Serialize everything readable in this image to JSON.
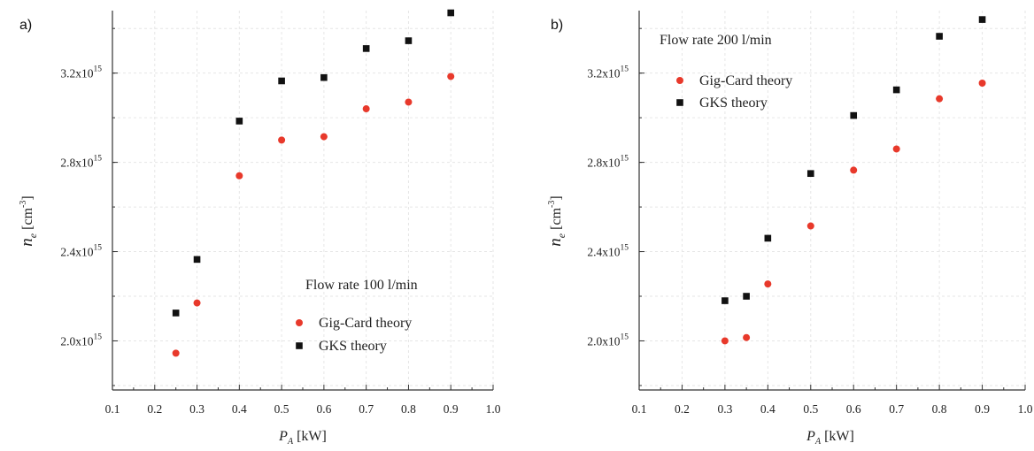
{
  "colors": {
    "gig_card": "#e8392b",
    "gks": "#111111",
    "axis": "#333333",
    "grid": "#e6e6e6"
  },
  "chart_data": [
    {
      "type": "scatter",
      "panel_label": "a)",
      "annotation": "Flow rate 100 l/min",
      "xlabel_main": "P",
      "xlabel_sub": "A",
      "xlabel_unit": "[kW]",
      "ylabel_main": "n",
      "ylabel_sub": "e",
      "ylabel_unit_pre": "[cm",
      "ylabel_unit_sup": "-3",
      "ylabel_unit_post": "]",
      "xlim": [
        0.1,
        1.0
      ],
      "ylim": [
        1780000000000000.0,
        3480000000000000.0
      ],
      "xticks": [
        0.1,
        0.2,
        0.3,
        0.4,
        0.5,
        0.6,
        0.7,
        0.8,
        0.9,
        1.0
      ],
      "xtick_labels": [
        "0.1",
        "0.2",
        "0.3",
        "0.4",
        "0.5",
        "0.6",
        "0.7",
        "0.8",
        "0.9",
        "1.0"
      ],
      "yticks": [
        2000000000000000.0,
        2400000000000000.0,
        2800000000000000.0,
        3200000000000000.0
      ],
      "ytick_labels": [
        {
          "mantissa": "2.0x10",
          "exp": "15"
        },
        {
          "mantissa": "2.4x10",
          "exp": "15"
        },
        {
          "mantissa": "2.8x10",
          "exp": "15"
        },
        {
          "mantissa": "3.2x10",
          "exp": "15"
        }
      ],
      "grid": true,
      "legend_placement": "bottom-right",
      "series": [
        {
          "name": "Gig-Card theory",
          "marker": "circle",
          "color": "#e8392b",
          "x": [
            0.25,
            0.3,
            0.4,
            0.5,
            0.6,
            0.7,
            0.8,
            0.9
          ],
          "y": [
            1945000000000000.0,
            2170000000000000.0,
            2740000000000000.0,
            2900000000000000.0,
            2915000000000000.0,
            3040000000000000.0,
            3070000000000000.0,
            3185000000000000.0
          ]
        },
        {
          "name": "GKS theory",
          "marker": "square",
          "color": "#111111",
          "x": [
            0.25,
            0.3,
            0.4,
            0.5,
            0.6,
            0.7,
            0.8,
            0.9
          ],
          "y": [
            2125000000000000.0,
            2365000000000000.0,
            2985000000000000.0,
            3165000000000000.0,
            3180000000000000.0,
            3310000000000000.0,
            3345000000000000.0,
            3470000000000000.0
          ]
        }
      ]
    },
    {
      "type": "scatter",
      "panel_label": "b)",
      "annotation": "Flow rate 200 l/min",
      "xlabel_main": "P",
      "xlabel_sub": "A",
      "xlabel_unit": "[kW]",
      "ylabel_main": "n",
      "ylabel_sub": "e",
      "ylabel_unit_pre": "[cm",
      "ylabel_unit_sup": "-3",
      "ylabel_unit_post": "]",
      "xlim": [
        0.1,
        1.0
      ],
      "ylim": [
        1780000000000000.0,
        3480000000000000.0
      ],
      "xticks": [
        0.1,
        0.2,
        0.3,
        0.4,
        0.5,
        0.6,
        0.7,
        0.8,
        0.9,
        1.0
      ],
      "xtick_labels": [
        "0.1",
        "0.2",
        "0.3",
        "0.4",
        "0.5",
        "0.6",
        "0.7",
        "0.8",
        "0.9",
        "1.0"
      ],
      "yticks": [
        2000000000000000.0,
        2400000000000000.0,
        2800000000000000.0,
        3200000000000000.0
      ],
      "ytick_labels": [
        {
          "mantissa": "2.0x10",
          "exp": "15"
        },
        {
          "mantissa": "2.4x10",
          "exp": "15"
        },
        {
          "mantissa": "2.8x10",
          "exp": "15"
        },
        {
          "mantissa": "3.2x10",
          "exp": "15"
        }
      ],
      "grid": true,
      "legend_placement": "top-left",
      "series": [
        {
          "name": "Gig-Card theory",
          "marker": "circle",
          "color": "#e8392b",
          "x": [
            0.3,
            0.35,
            0.4,
            0.5,
            0.6,
            0.7,
            0.8,
            0.9
          ],
          "y": [
            2000000000000000.0,
            2015000000000000.0,
            2255000000000000.0,
            2515000000000000.0,
            2765000000000000.0,
            2860000000000000.0,
            3085000000000000.0,
            3155000000000000.0
          ]
        },
        {
          "name": "GKS theory",
          "marker": "square",
          "color": "#111111",
          "x": [
            0.3,
            0.35,
            0.4,
            0.5,
            0.6,
            0.7,
            0.8,
            0.9
          ],
          "y": [
            2180000000000000.0,
            2200000000000000.0,
            2460000000000000.0,
            2750000000000000.0,
            3010000000000000.0,
            3125000000000000.0,
            3365000000000000.0,
            3440000000000000.0
          ]
        }
      ]
    }
  ]
}
